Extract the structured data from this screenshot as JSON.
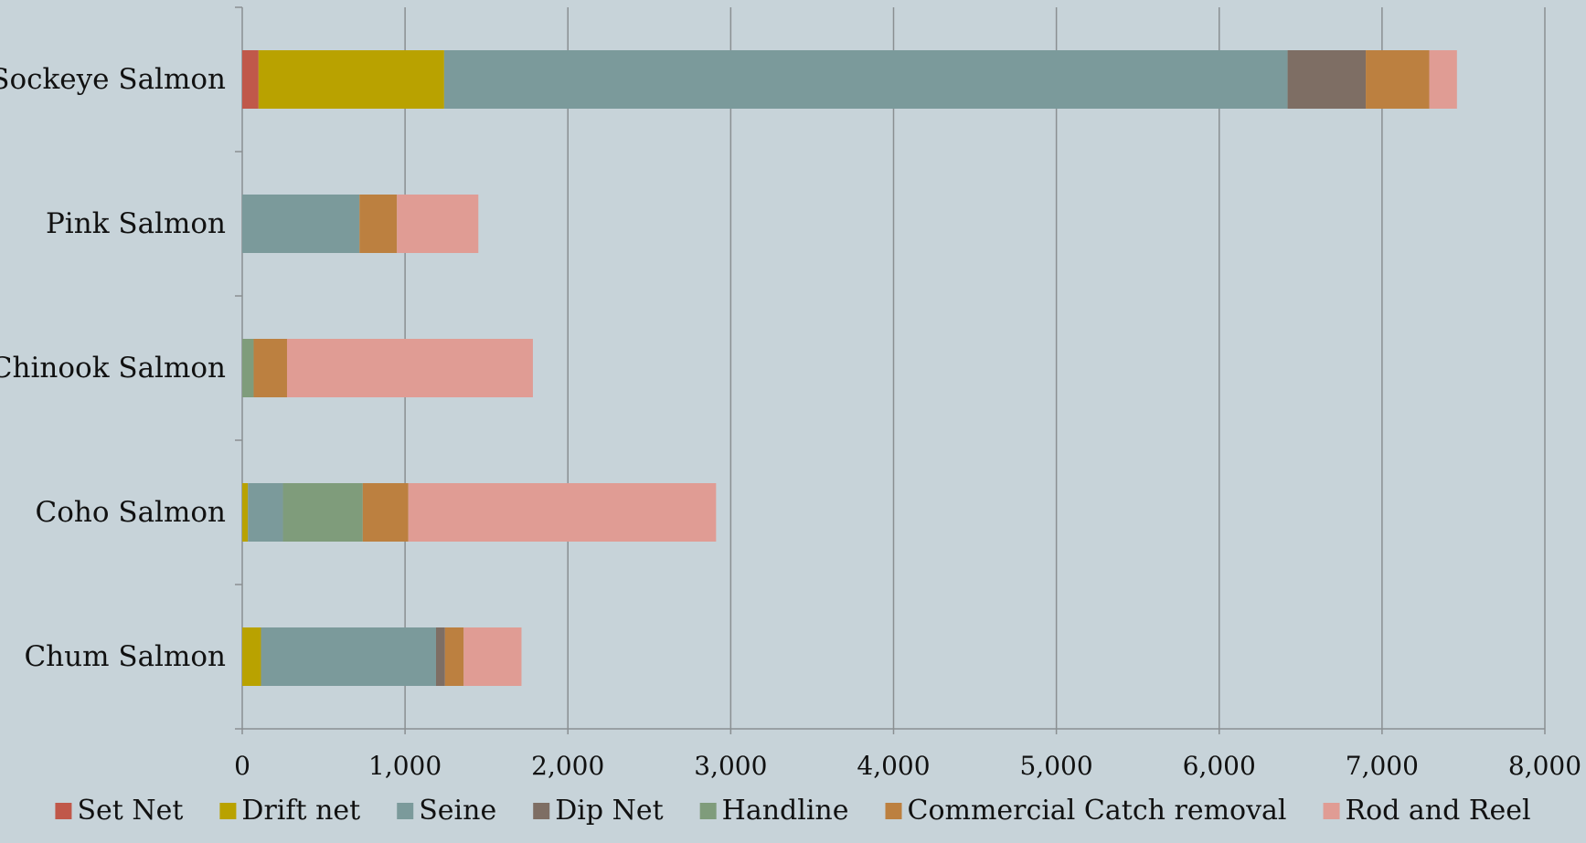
{
  "chart_data": {
    "type": "bar",
    "orientation": "horizontal",
    "stacked": true,
    "title": "",
    "xlabel": "",
    "ylabel": "",
    "xlim": [
      0,
      8000
    ],
    "x_ticks": [
      0,
      1000,
      2000,
      3000,
      4000,
      5000,
      6000,
      7000,
      8000
    ],
    "x_tick_labels": [
      "0",
      "1,000",
      "2,000",
      "3,000",
      "4,000",
      "5,000",
      "6,000",
      "7,000",
      "8,000"
    ],
    "grid": "vertical gridlines",
    "legend_position": "bottom",
    "categories": [
      "Sockeye Salmon",
      "Pink Salmon",
      "Chinook Salmon",
      "Coho Salmon",
      "Chum Salmon"
    ],
    "series": [
      {
        "name": "Set Net",
        "color": "#c0584a",
        "values": [
          100,
          0,
          0,
          0,
          0
        ]
      },
      {
        "name": "Drift net",
        "color": "#b9a200",
        "values": [
          1140,
          0,
          0,
          35,
          115
        ]
      },
      {
        "name": "Seine",
        "color": "#7b9a9b",
        "values": [
          5180,
          720,
          0,
          215,
          1075
        ]
      },
      {
        "name": "Dip Net",
        "color": "#7e6e64",
        "values": [
          480,
          0,
          0,
          0,
          55
        ]
      },
      {
        "name": "Handline",
        "color": "#7f9c7b",
        "values": [
          0,
          0,
          70,
          490,
          0
        ]
      },
      {
        "name": "Commercial Catch removal",
        "color": "#bc8040",
        "values": [
          390,
          230,
          205,
          280,
          115
        ]
      },
      {
        "name": "Rod and Reel",
        "color": "#e09c94",
        "values": [
          170,
          500,
          1510,
          1890,
          355
        ]
      }
    ]
  }
}
